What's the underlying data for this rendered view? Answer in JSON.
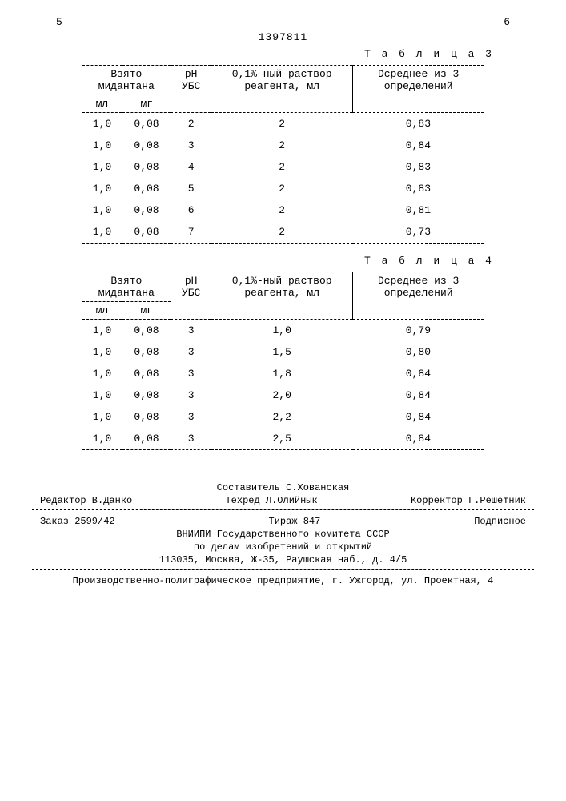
{
  "header": {
    "left_page": "5",
    "right_page": "6",
    "doc_number": "1397811"
  },
  "table3": {
    "title": "Т а б л и ц а 3",
    "head": {
      "col1_span": "Взято мидантана",
      "col1a": "мл",
      "col1b": "мг",
      "col2": "pH УБС",
      "col3": "0,1%-ный раствор реагента, мл",
      "col4": "Dсреднее из 3 определений"
    },
    "rows": [
      [
        "1,0",
        "0,08",
        "2",
        "2",
        "0,83"
      ],
      [
        "1,0",
        "0,08",
        "3",
        "2",
        "0,84"
      ],
      [
        "1,0",
        "0,08",
        "4",
        "2",
        "0,83"
      ],
      [
        "1,0",
        "0,08",
        "5",
        "2",
        "0,83"
      ],
      [
        "1,0",
        "0,08",
        "6",
        "2",
        "0,81"
      ],
      [
        "1,0",
        "0,08",
        "7",
        "2",
        "0,73"
      ]
    ]
  },
  "table4": {
    "title": "Т а б л и ц а 4",
    "head": {
      "col1_span": "Взято мидантана",
      "col1a": "мл",
      "col1b": "мг",
      "col2": "pH УБС",
      "col3": "0,1%-ный раствор реагента, мл",
      "col4": "Dсреднее из 3 определений"
    },
    "rows": [
      [
        "1,0",
        "0,08",
        "3",
        "1,0",
        "0,79"
      ],
      [
        "1,0",
        "0,08",
        "3",
        "1,5",
        "0,80"
      ],
      [
        "1,0",
        "0,08",
        "3",
        "1,8",
        "0,84"
      ],
      [
        "1,0",
        "0,08",
        "3",
        "2,0",
        "0,84"
      ],
      [
        "1,0",
        "0,08",
        "3",
        "2,2",
        "0,84"
      ],
      [
        "1,0",
        "0,08",
        "3",
        "2,5",
        "0,84"
      ]
    ]
  },
  "footer": {
    "compiler": "Составитель С.Хованская",
    "editor": "Редактор В.Данко",
    "tehred": "Техред Л.Олийнык",
    "corrector": "Корректор Г.Решетник",
    "order": "Заказ 2599/42",
    "tirazh": "Тираж 847",
    "podpisnoe": "Подписное",
    "org1": "ВНИИПИ Государственного комитета СССР",
    "org2": "по делам изобретений и открытий",
    "addr": "113035, Москва, Ж-35, Раушская наб., д. 4/5",
    "printer": "Производственно-полиграфическое предприятие, г. Ужгород, ул. Проектная, 4"
  }
}
